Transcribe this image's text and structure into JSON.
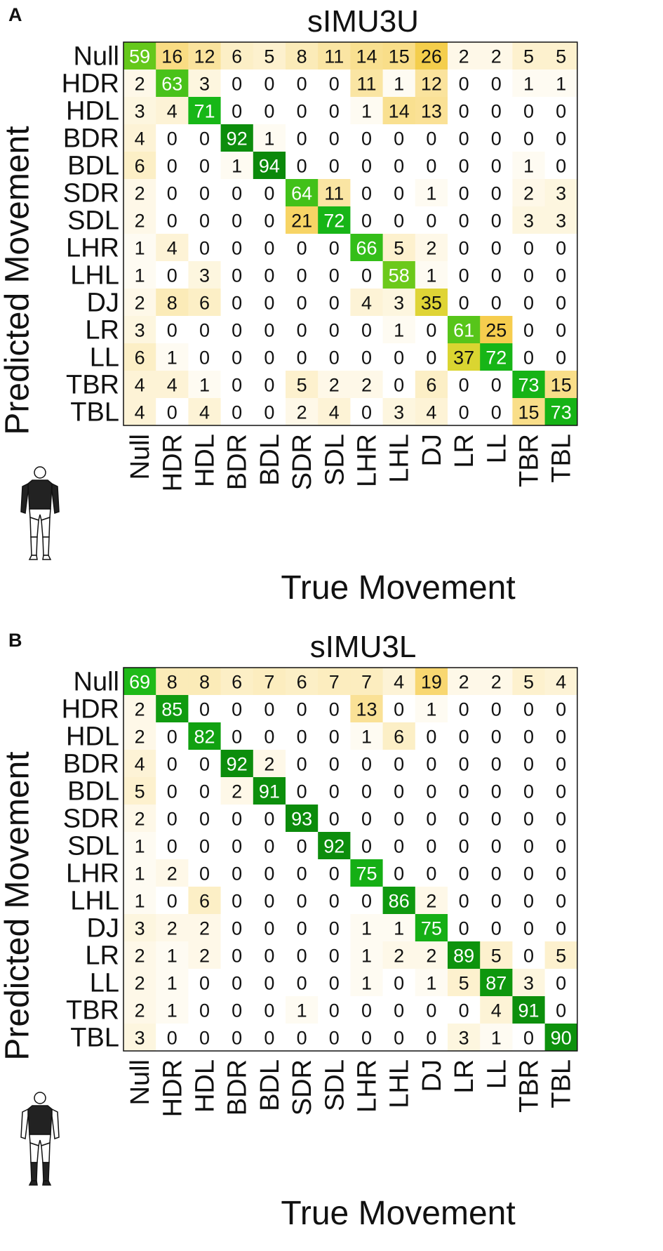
{
  "figure": {
    "colors": {
      "low": "#ffffff",
      "mid": "#f6cd4e",
      "high": "#18b918",
      "text_dark": "#111111",
      "text_light": "#ffffff"
    },
    "icon": "human-body-icon"
  },
  "chart_data": [
    {
      "type": "heatmap",
      "panel": "A",
      "title": "sIMU3U",
      "xlabel": "True Movement",
      "ylabel": "Predicted Movement",
      "x_categories": [
        "Null",
        "HDR",
        "HDL",
        "BDR",
        "BDL",
        "SDR",
        "SDL",
        "LHR",
        "LHL",
        "DJ",
        "LR",
        "LL",
        "TBR",
        "TBL"
      ],
      "y_categories": [
        "Null",
        "HDR",
        "HDL",
        "BDR",
        "BDL",
        "SDR",
        "SDL",
        "LHR",
        "LHL",
        "DJ",
        "LR",
        "LL",
        "TBR",
        "TBL"
      ],
      "values": [
        [
          59,
          16,
          12,
          6,
          5,
          8,
          11,
          14,
          15,
          26,
          2,
          2,
          5,
          5
        ],
        [
          2,
          63,
          3,
          0,
          0,
          0,
          0,
          11,
          1,
          12,
          0,
          0,
          1,
          1
        ],
        [
          3,
          4,
          71,
          0,
          0,
          0,
          0,
          1,
          14,
          13,
          0,
          0,
          0,
          0
        ],
        [
          4,
          0,
          0,
          92,
          1,
          0,
          0,
          0,
          0,
          0,
          0,
          0,
          0,
          0
        ],
        [
          6,
          0,
          0,
          1,
          94,
          0,
          0,
          0,
          0,
          0,
          0,
          0,
          1,
          0
        ],
        [
          2,
          0,
          0,
          0,
          0,
          64,
          11,
          0,
          0,
          1,
          0,
          0,
          2,
          3
        ],
        [
          2,
          0,
          0,
          0,
          0,
          21,
          72,
          0,
          0,
          0,
          0,
          0,
          3,
          3
        ],
        [
          1,
          4,
          0,
          0,
          0,
          0,
          0,
          66,
          5,
          2,
          0,
          0,
          0,
          0
        ],
        [
          1,
          0,
          3,
          0,
          0,
          0,
          0,
          0,
          58,
          1,
          0,
          0,
          0,
          0
        ],
        [
          2,
          8,
          6,
          0,
          0,
          0,
          0,
          4,
          3,
          35,
          0,
          0,
          0,
          0
        ],
        [
          3,
          0,
          0,
          0,
          0,
          0,
          0,
          0,
          1,
          0,
          61,
          25,
          0,
          0
        ],
        [
          6,
          1,
          0,
          0,
          0,
          0,
          0,
          0,
          0,
          0,
          37,
          72,
          0,
          0
        ],
        [
          4,
          4,
          1,
          0,
          0,
          5,
          2,
          2,
          0,
          6,
          0,
          0,
          73,
          15
        ],
        [
          4,
          0,
          4,
          0,
          0,
          2,
          4,
          0,
          3,
          4,
          0,
          0,
          15,
          73
        ]
      ]
    },
    {
      "type": "heatmap",
      "panel": "B",
      "title": "sIMU3L",
      "xlabel": "True Movement",
      "ylabel": "Predicted Movement",
      "x_categories": [
        "Null",
        "HDR",
        "HDL",
        "BDR",
        "BDL",
        "SDR",
        "SDL",
        "LHR",
        "LHL",
        "DJ",
        "LR",
        "LL",
        "TBR",
        "TBL"
      ],
      "y_categories": [
        "Null",
        "HDR",
        "HDL",
        "BDR",
        "BDL",
        "SDR",
        "SDL",
        "LHR",
        "LHL",
        "DJ",
        "LR",
        "LL",
        "TBR",
        "TBL"
      ],
      "values": [
        [
          69,
          8,
          8,
          6,
          7,
          6,
          7,
          7,
          4,
          19,
          2,
          2,
          5,
          4
        ],
        [
          2,
          85,
          0,
          0,
          0,
          0,
          0,
          13,
          0,
          1,
          0,
          0,
          0,
          0
        ],
        [
          2,
          0,
          82,
          0,
          0,
          0,
          0,
          1,
          6,
          0,
          0,
          0,
          0,
          0
        ],
        [
          4,
          0,
          0,
          92,
          2,
          0,
          0,
          0,
          0,
          0,
          0,
          0,
          0,
          0
        ],
        [
          5,
          0,
          0,
          2,
          91,
          0,
          0,
          0,
          0,
          0,
          0,
          0,
          0,
          0
        ],
        [
          2,
          0,
          0,
          0,
          0,
          93,
          0,
          0,
          0,
          0,
          0,
          0,
          0,
          0
        ],
        [
          1,
          0,
          0,
          0,
          0,
          0,
          92,
          0,
          0,
          0,
          0,
          0,
          0,
          0
        ],
        [
          1,
          2,
          0,
          0,
          0,
          0,
          0,
          75,
          0,
          0,
          0,
          0,
          0,
          0
        ],
        [
          1,
          0,
          6,
          0,
          0,
          0,
          0,
          0,
          86,
          2,
          0,
          0,
          0,
          0
        ],
        [
          3,
          2,
          2,
          0,
          0,
          0,
          0,
          1,
          1,
          75,
          0,
          0,
          0,
          0
        ],
        [
          2,
          1,
          2,
          0,
          0,
          0,
          0,
          1,
          2,
          2,
          89,
          5,
          0,
          5
        ],
        [
          2,
          1,
          0,
          0,
          0,
          0,
          0,
          1,
          0,
          1,
          5,
          87,
          3,
          0
        ],
        [
          2,
          1,
          0,
          0,
          0,
          1,
          0,
          0,
          0,
          0,
          0,
          4,
          91,
          0
        ],
        [
          3,
          0,
          0,
          0,
          0,
          0,
          0,
          0,
          0,
          0,
          3,
          1,
          0,
          90
        ]
      ]
    }
  ]
}
